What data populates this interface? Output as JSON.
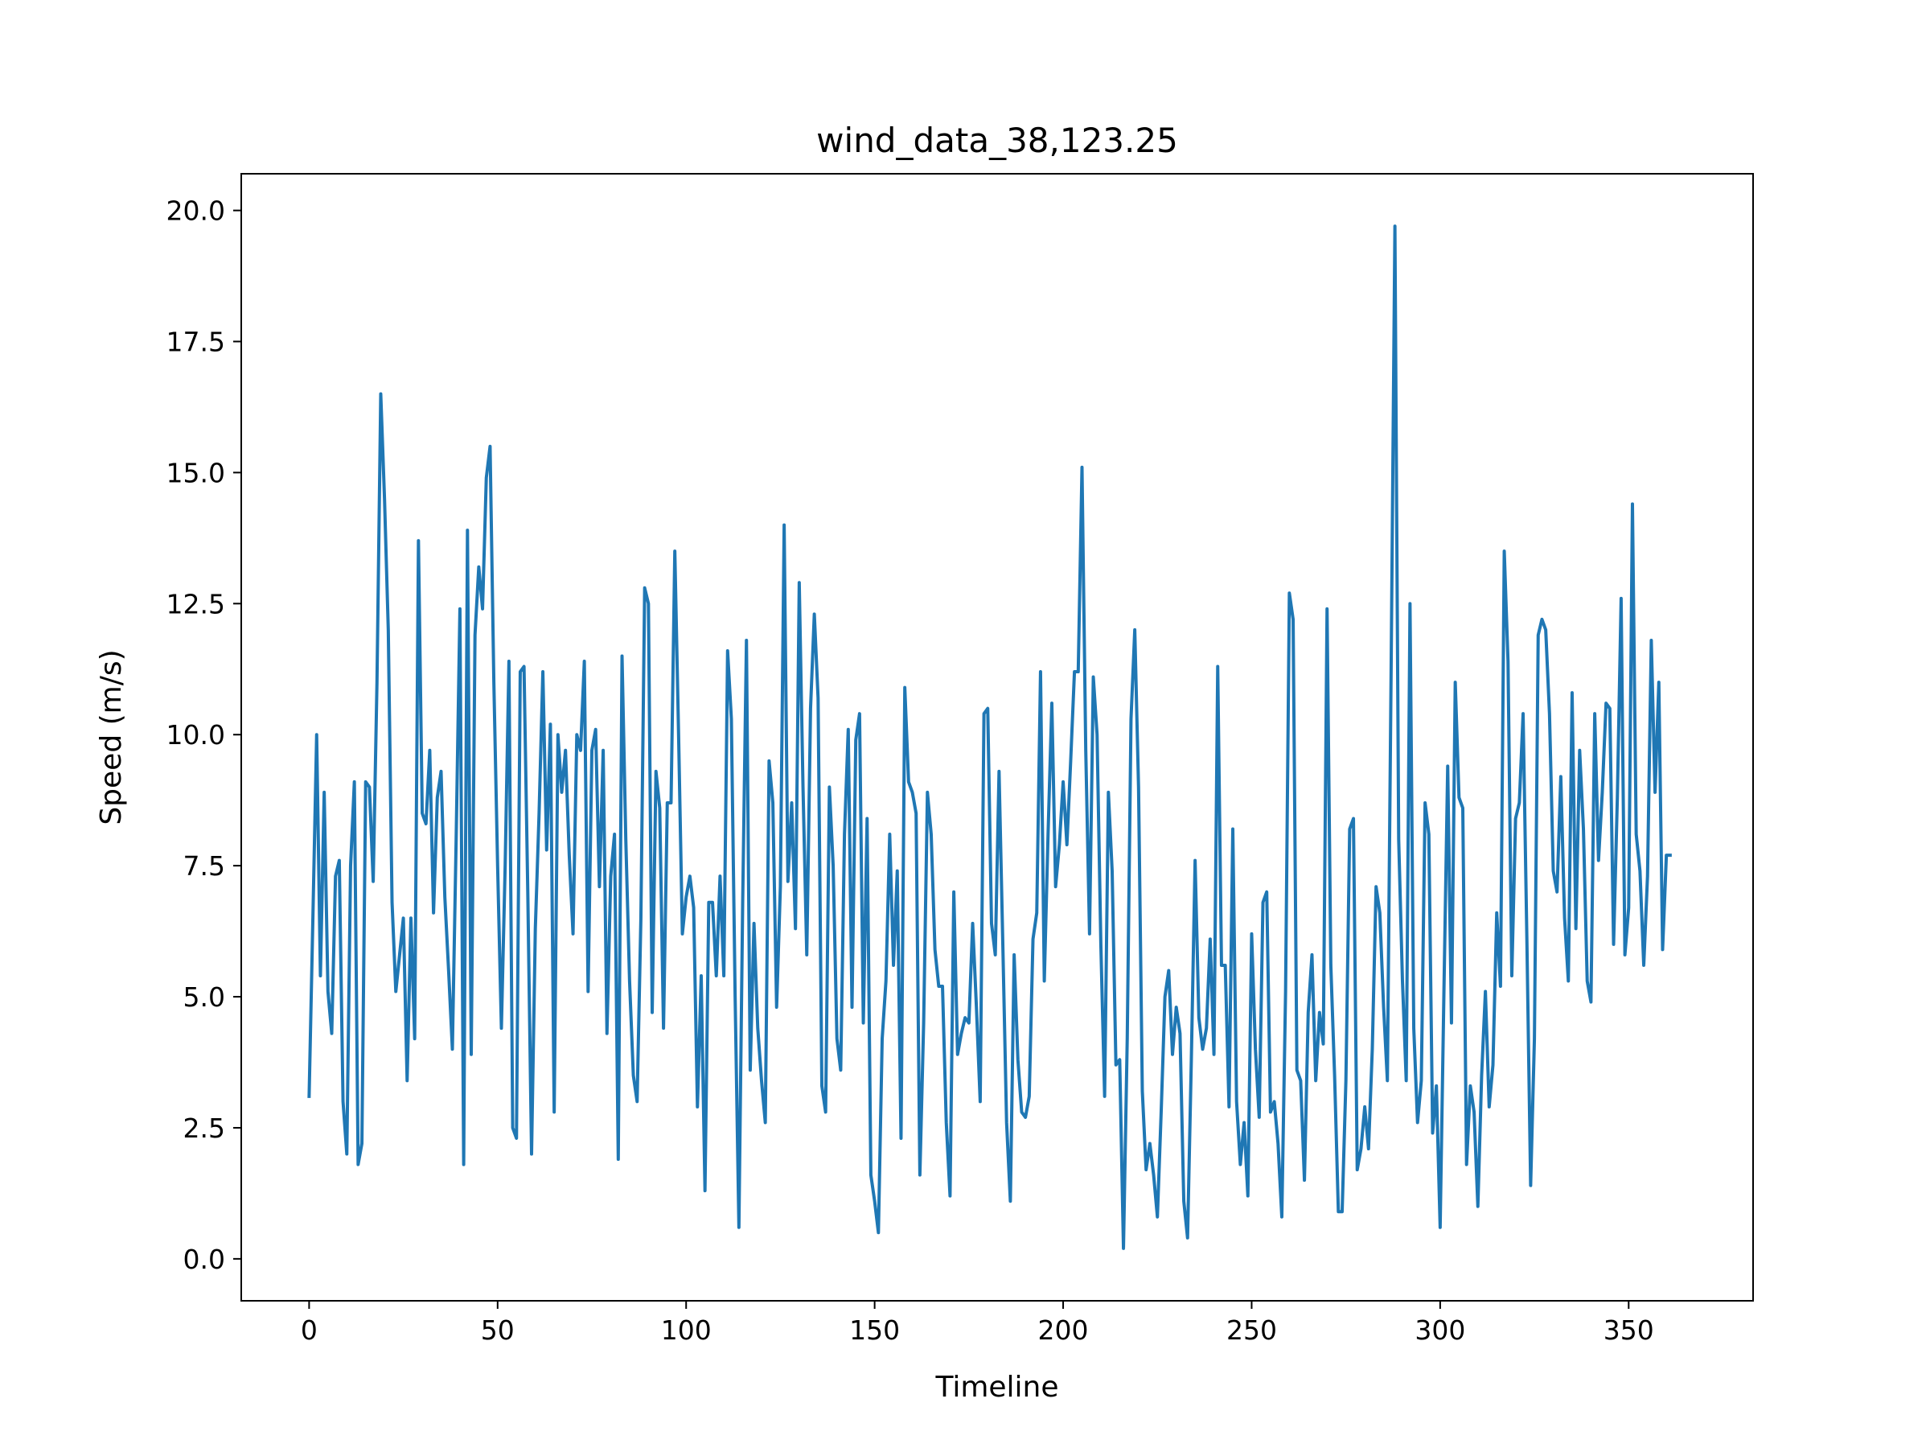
{
  "chart_data": {
    "type": "line",
    "title": "wind_data_38,123.25",
    "xlabel": "Timeline",
    "ylabel": "Speed (m/s)",
    "xlim": [
      -18,
      383
    ],
    "ylim": [
      -0.8,
      20.7
    ],
    "grid": false,
    "series_color": "#1f77b4",
    "x_ticks": [
      0,
      50,
      100,
      150,
      200,
      250,
      300,
      350
    ],
    "x_tick_labels": [
      "0",
      "50",
      "100",
      "150",
      "200",
      "250",
      "300",
      "350"
    ],
    "y_ticks": [
      0,
      2.5,
      5,
      7.5,
      10,
      12.5,
      15,
      17.5,
      20
    ],
    "y_tick_labels": [
      "0.0",
      "2.5",
      "5.0",
      "7.5",
      "10.0",
      "12.5",
      "15.0",
      "17.5",
      "20.0"
    ],
    "series": [
      {
        "x_start": 0,
        "x_step": 1,
        "values": [
          3.1,
          6.5,
          10.0,
          5.4,
          8.9,
          5.1,
          4.3,
          7.3,
          7.6,
          3.0,
          2.0,
          7.5,
          9.1,
          1.8,
          2.2,
          9.1,
          9.0,
          7.2,
          11.0,
          16.5,
          14.5,
          12.0,
          6.8,
          5.1,
          5.8,
          6.5,
          3.4,
          6.5,
          4.2,
          13.7,
          8.5,
          8.3,
          9.7,
          6.6,
          8.8,
          9.3,
          6.9,
          5.5,
          4.0,
          8.0,
          12.4,
          1.8,
          13.9,
          3.9,
          11.9,
          13.2,
          12.4,
          14.9,
          15.5,
          11.0,
          7.5,
          4.4,
          7.5,
          11.4,
          2.5,
          2.3,
          11.2,
          11.3,
          7.0,
          2.0,
          6.3,
          8.5,
          11.2,
          7.8,
          10.2,
          2.8,
          10.0,
          8.9,
          9.7,
          7.7,
          6.2,
          10.0,
          9.7,
          11.4,
          5.1,
          9.7,
          10.1,
          7.1,
          9.7,
          4.3,
          7.3,
          8.1,
          1.9,
          11.5,
          8.0,
          5.3,
          3.5,
          3.0,
          6.5,
          12.8,
          12.5,
          4.7,
          9.3,
          8.6,
          4.4,
          8.7,
          8.7,
          13.5,
          10.0,
          6.2,
          6.9,
          7.3,
          6.7,
          2.9,
          5.4,
          1.3,
          6.8,
          6.8,
          5.4,
          7.3,
          5.4,
          11.6,
          10.3,
          5.0,
          0.6,
          6.8,
          11.8,
          3.6,
          6.4,
          4.4,
          3.4,
          2.6,
          9.5,
          8.7,
          4.8,
          7.1,
          14.0,
          7.2,
          8.7,
          6.3,
          12.9,
          9.0,
          5.8,
          10.5,
          12.3,
          10.7,
          3.3,
          2.8,
          9.0,
          7.5,
          4.2,
          3.6,
          8.1,
          10.1,
          4.8,
          9.9,
          10.4,
          4.5,
          8.4,
          1.6,
          1.1,
          0.5,
          4.2,
          5.3,
          8.1,
          5.6,
          7.4,
          2.3,
          10.9,
          9.1,
          8.9,
          8.5,
          1.6,
          4.5,
          8.9,
          8.1,
          5.9,
          5.2,
          5.2,
          2.6,
          1.2,
          7.0,
          3.9,
          4.3,
          4.6,
          4.5,
          6.4,
          4.8,
          3.0,
          10.4,
          10.5,
          6.4,
          5.8,
          9.3,
          6.0,
          2.6,
          1.1,
          5.8,
          3.8,
          2.8,
          2.7,
          3.1,
          6.1,
          6.6,
          11.2,
          5.3,
          8.1,
          10.6,
          7.1,
          7.9,
          9.1,
          7.9,
          9.5,
          11.2,
          11.2,
          15.1,
          9.7,
          6.2,
          11.1,
          10.0,
          6.0,
          3.1,
          8.9,
          7.4,
          3.7,
          3.8,
          0.2,
          4.2,
          10.3,
          12.0,
          9.0,
          3.2,
          1.7,
          2.2,
          1.6,
          0.8,
          2.8,
          5.0,
          5.5,
          3.9,
          4.8,
          4.3,
          1.1,
          0.4,
          3.8,
          7.6,
          4.6,
          4.0,
          4.4,
          6.1,
          3.9,
          11.3,
          5.6,
          5.6,
          2.9,
          8.2,
          3.0,
          1.8,
          2.6,
          1.2,
          6.2,
          4.0,
          2.7,
          6.8,
          7.0,
          2.8,
          3.0,
          2.2,
          0.8,
          5.1,
          12.7,
          12.2,
          3.6,
          3.4,
          1.5,
          4.7,
          5.8,
          3.4,
          4.7,
          4.1,
          12.4,
          5.6,
          3.5,
          0.9,
          0.9,
          3.4,
          8.2,
          8.4,
          1.7,
          2.1,
          2.9,
          2.1,
          4.0,
          7.1,
          6.6,
          4.8,
          3.4,
          11.3,
          19.7,
          8.0,
          5.3,
          3.4,
          12.5,
          4.4,
          2.6,
          3.4,
          8.7,
          8.1,
          2.4,
          3.3,
          0.6,
          5.1,
          9.4,
          4.5,
          11.0,
          8.8,
          8.6,
          1.8,
          3.3,
          2.8,
          1.0,
          3.5,
          5.1,
          2.9,
          3.7,
          6.6,
          5.2,
          13.5,
          11.4,
          5.4,
          8.4,
          8.7,
          10.4,
          6.1,
          1.4,
          4.2,
          11.9,
          12.2,
          12.0,
          10.4,
          7.4,
          7.0,
          9.2,
          6.5,
          5.3,
          10.8,
          6.3,
          9.7,
          8.2,
          5.3,
          4.9,
          10.4,
          7.6,
          8.9,
          10.6,
          10.5,
          6.0,
          8.8,
          12.6,
          5.8,
          6.7,
          14.4,
          8.1,
          7.4,
          5.6,
          7.3,
          11.8,
          8.9,
          11.0,
          5.9,
          7.7,
          7.7
        ]
      }
    ]
  }
}
